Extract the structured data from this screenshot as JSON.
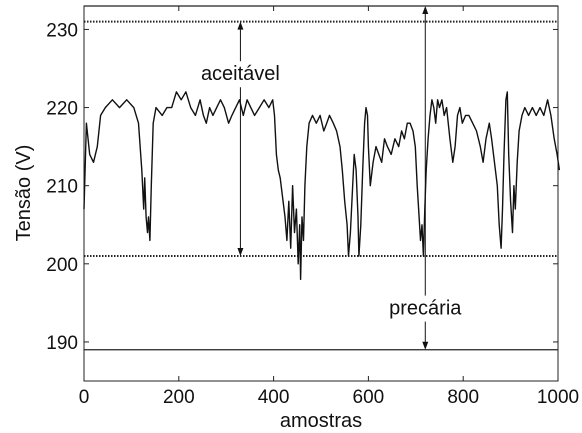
{
  "chart_data": {
    "type": "line",
    "title": "",
    "xlabel": "amostras",
    "ylabel": "Tensão (V)",
    "xlim": [
      0,
      1000
    ],
    "ylim": [
      185,
      233
    ],
    "grid": false,
    "x_ticks": [
      0,
      200,
      400,
      600,
      800,
      1000
    ],
    "y_ticks": [
      190,
      200,
      210,
      220,
      230
    ],
    "reference_lines": [
      {
        "name": "upper-precaria",
        "y": 233,
        "style": "solid"
      },
      {
        "name": "upper-aceitavel",
        "y": 231,
        "style": "dotted"
      },
      {
        "name": "lower-aceitavel",
        "y": 201,
        "style": "dotted"
      },
      {
        "name": "lower-precaria",
        "y": 189,
        "style": "solid"
      }
    ],
    "annotations": [
      {
        "text": "aceitável",
        "x": 330,
        "y": 223.5,
        "arrow_x": 330,
        "arrow_from": 231,
        "arrow_to": 201
      },
      {
        "text": "precária",
        "x": 720,
        "y": 193.5,
        "arrow_x": 720,
        "arrow_from": 233,
        "arrow_to": 189
      }
    ],
    "series": [
      {
        "points": [
          [
            0,
            207
          ],
          [
            5,
            218
          ],
          [
            12,
            214
          ],
          [
            20,
            213
          ],
          [
            28,
            215
          ],
          [
            35,
            219
          ],
          [
            45,
            220
          ],
          [
            60,
            221
          ],
          [
            75,
            220
          ],
          [
            90,
            221
          ],
          [
            105,
            220
          ],
          [
            115,
            218
          ],
          [
            122,
            212
          ],
          [
            126,
            207
          ],
          [
            128,
            211
          ],
          [
            131,
            206
          ],
          [
            134,
            204
          ],
          [
            136,
            206
          ],
          [
            139,
            203
          ],
          [
            142,
            210
          ],
          [
            146,
            218
          ],
          [
            152,
            220
          ],
          [
            165,
            219
          ],
          [
            175,
            220
          ],
          [
            185,
            220
          ],
          [
            195,
            222
          ],
          [
            205,
            221
          ],
          [
            215,
            222
          ],
          [
            225,
            220
          ],
          [
            235,
            219
          ],
          [
            245,
            221
          ],
          [
            252,
            219
          ],
          [
            258,
            218
          ],
          [
            265,
            220
          ],
          [
            272,
            219
          ],
          [
            280,
            220
          ],
          [
            288,
            221
          ],
          [
            296,
            220
          ],
          [
            305,
            218
          ],
          [
            312,
            219
          ],
          [
            320,
            220
          ],
          [
            328,
            221
          ],
          [
            336,
            219
          ],
          [
            344,
            221
          ],
          [
            352,
            220
          ],
          [
            360,
            219
          ],
          [
            370,
            220
          ],
          [
            380,
            221
          ],
          [
            390,
            220
          ],
          [
            398,
            221
          ],
          [
            402,
            219
          ],
          [
            406,
            214
          ],
          [
            410,
            212
          ],
          [
            414,
            211
          ],
          [
            418,
            209
          ],
          [
            424,
            206
          ],
          [
            428,
            203
          ],
          [
            432,
            208
          ],
          [
            436,
            202
          ],
          [
            440,
            210
          ],
          [
            444,
            204
          ],
          [
            448,
            207
          ],
          [
            452,
            200
          ],
          [
            455,
            205
          ],
          [
            457,
            198
          ],
          [
            460,
            206
          ],
          [
            463,
            203
          ],
          [
            466,
            210
          ],
          [
            470,
            215
          ],
          [
            475,
            218
          ],
          [
            482,
            219
          ],
          [
            490,
            218
          ],
          [
            498,
            219
          ],
          [
            506,
            217
          ],
          [
            512,
            218
          ],
          [
            518,
            219
          ],
          [
            526,
            218
          ],
          [
            533,
            217
          ],
          [
            540,
            215
          ],
          [
            545,
            212
          ],
          [
            550,
            208
          ],
          [
            555,
            205
          ],
          [
            558,
            201
          ],
          [
            562,
            204
          ],
          [
            566,
            209
          ],
          [
            570,
            214
          ],
          [
            574,
            212
          ],
          [
            578,
            206
          ],
          [
            580,
            201
          ],
          [
            584,
            205
          ],
          [
            588,
            212
          ],
          [
            592,
            218
          ],
          [
            595,
            220
          ],
          [
            598,
            219
          ],
          [
            600,
            215
          ],
          [
            604,
            210
          ],
          [
            610,
            213
          ],
          [
            616,
            215
          ],
          [
            622,
            214
          ],
          [
            628,
            213
          ],
          [
            634,
            216
          ],
          [
            640,
            215
          ],
          [
            648,
            214
          ],
          [
            656,
            216
          ],
          [
            664,
            215
          ],
          [
            670,
            217
          ],
          [
            676,
            216
          ],
          [
            682,
            218
          ],
          [
            688,
            218
          ],
          [
            694,
            217
          ],
          [
            699,
            215
          ],
          [
            703,
            210
          ],
          [
            707,
            206
          ],
          [
            710,
            203
          ],
          [
            713,
            205
          ],
          [
            716,
            201
          ],
          [
            719,
            207
          ],
          [
            722,
            212
          ],
          [
            726,
            216
          ],
          [
            730,
            219
          ],
          [
            734,
            221
          ],
          [
            738,
            220
          ],
          [
            742,
            218
          ],
          [
            746,
            221
          ],
          [
            750,
            220
          ],
          [
            755,
            221
          ],
          [
            760,
            219
          ],
          [
            765,
            220
          ],
          [
            772,
            216
          ],
          [
            778,
            213
          ],
          [
            783,
            215
          ],
          [
            788,
            219
          ],
          [
            793,
            220
          ],
          [
            798,
            218
          ],
          [
            805,
            219
          ],
          [
            812,
            219
          ],
          [
            820,
            218
          ],
          [
            828,
            217
          ],
          [
            836,
            215
          ],
          [
            842,
            213
          ],
          [
            848,
            216
          ],
          [
            855,
            218
          ],
          [
            860,
            216
          ],
          [
            864,
            214
          ],
          [
            868,
            212
          ],
          [
            872,
            210
          ],
          [
            876,
            205
          ],
          [
            880,
            202
          ],
          [
            883,
            207
          ],
          [
            886,
            214
          ],
          [
            890,
            221
          ],
          [
            893,
            222
          ],
          [
            896,
            214
          ],
          [
            900,
            208
          ],
          [
            904,
            204
          ],
          [
            907,
            210
          ],
          [
            910,
            207
          ],
          [
            914,
            213
          ],
          [
            918,
            217
          ],
          [
            924,
            219
          ],
          [
            930,
            220
          ],
          [
            938,
            219
          ],
          [
            946,
            220
          ],
          [
            954,
            219
          ],
          [
            962,
            220
          ],
          [
            970,
            219
          ],
          [
            978,
            221
          ],
          [
            985,
            219
          ],
          [
            992,
            216
          ],
          [
            998,
            214
          ],
          [
            1003,
            212
          ]
        ]
      }
    ]
  }
}
